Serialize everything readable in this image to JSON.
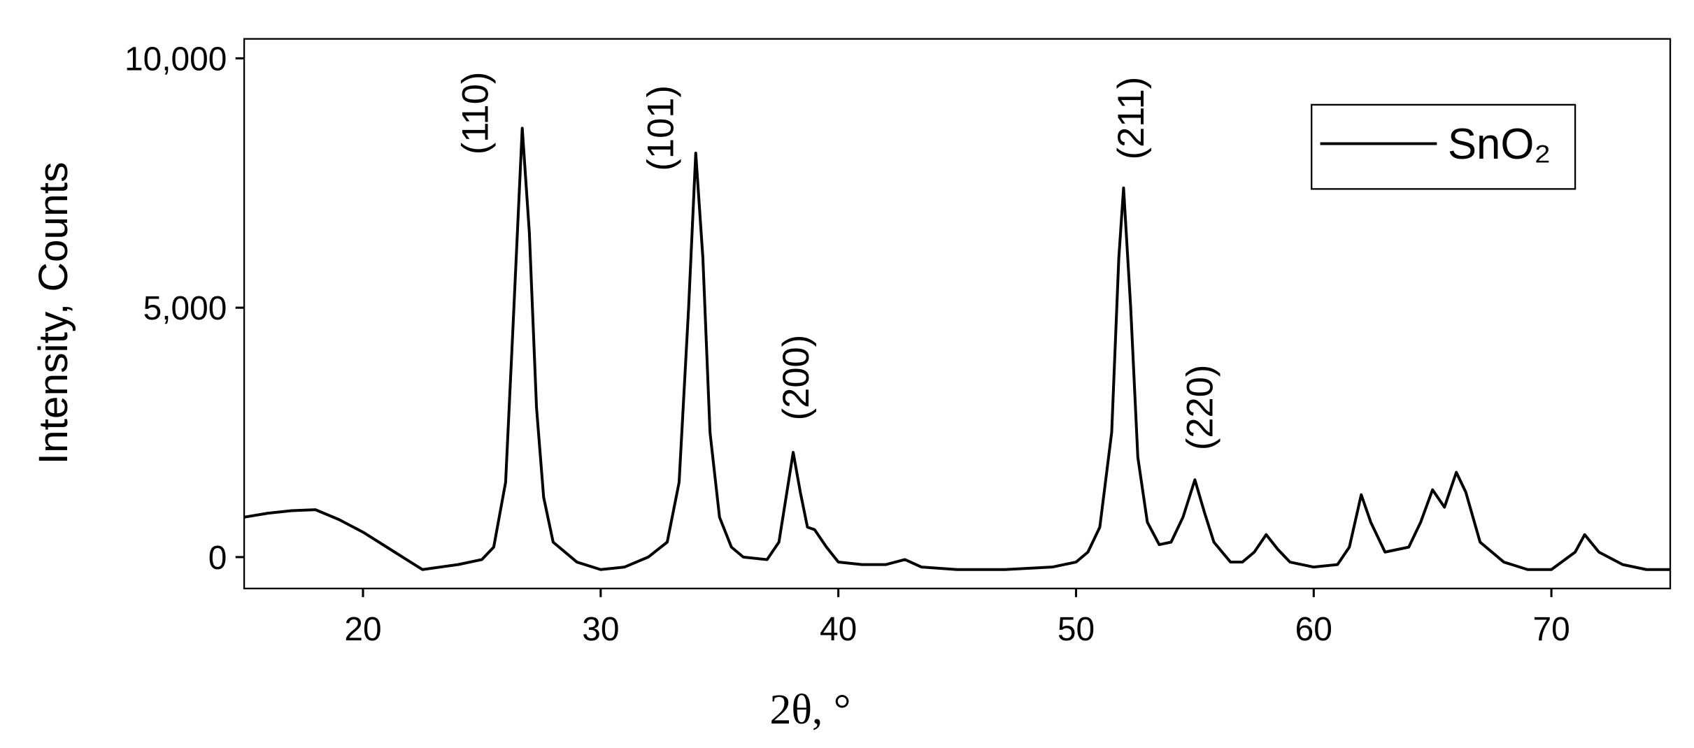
{
  "chart_data": {
    "type": "line",
    "x_label": "2θ, °",
    "y_label": "Intensity, Counts",
    "xlim": [
      15,
      75
    ],
    "ylim": [
      -630,
      10390
    ],
    "xticks": [
      20,
      30,
      40,
      50,
      60,
      70
    ],
    "yticks": [
      {
        "value": 0,
        "label": "0"
      },
      {
        "value": 5000,
        "label": "5,000"
      },
      {
        "value": 10000,
        "label": "10,000"
      }
    ],
    "legend": "top-right",
    "annotations": [
      {
        "text": "(110)",
        "x": 24.7,
        "y": 8900
      },
      {
        "text": "(101)",
        "x": 32.5,
        "y": 8600
      },
      {
        "text": "(200)",
        "x": 38.2,
        "y": 3600
      },
      {
        "text": "(211)",
        "x": 52.3,
        "y": 8800
      },
      {
        "text": "(220)",
        "x": 55.2,
        "y": 3000
      }
    ],
    "x": [
      15,
      16,
      17,
      18,
      19,
      20,
      21,
      22,
      22.5,
      24,
      25,
      25.5,
      26,
      26.3,
      26.7,
      27,
      27.3,
      27.6,
      28,
      29,
      30,
      31,
      32,
      32.8,
      33.3,
      33.7,
      34,
      34.3,
      34.6,
      35,
      35.5,
      36,
      37,
      37.5,
      37.8,
      38.1,
      38.4,
      38.7,
      39,
      39.5,
      40,
      41,
      42,
      42.8,
      43.5,
      45,
      47,
      49,
      50,
      50.5,
      51,
      51.5,
      51.8,
      52,
      52.3,
      52.6,
      53,
      53.5,
      54,
      54.5,
      55,
      55.4,
      55.8,
      56.5,
      57,
      57.5,
      58,
      58.5,
      59,
      60,
      61,
      61.5,
      62,
      62.4,
      63,
      64,
      64.5,
      65,
      65.5,
      66,
      66.4,
      67,
      68,
      69,
      70,
      71,
      71.4,
      72,
      73,
      74,
      75
    ],
    "series": [
      {
        "name": "SnO₂",
        "color": "#000000",
        "values": [
          800,
          880,
          930,
          950,
          750,
          500,
          200,
          -100,
          -250,
          -150,
          -50,
          200,
          1500,
          4500,
          8600,
          6500,
          3000,
          1200,
          300,
          -100,
          -250,
          -200,
          0,
          300,
          1500,
          5000,
          8100,
          6000,
          2500,
          800,
          200,
          0,
          -50,
          300,
          1200,
          2100,
          1300,
          600,
          550,
          200,
          -100,
          -150,
          -150,
          -50,
          -200,
          -250,
          -250,
          -200,
          -100,
          100,
          600,
          2500,
          6000,
          7400,
          5000,
          2000,
          700,
          250,
          300,
          800,
          1550,
          900,
          300,
          -100,
          -100,
          100,
          450,
          150,
          -100,
          -200,
          -150,
          200,
          1250,
          700,
          100,
          200,
          700,
          1350,
          1000,
          1700,
          1300,
          300,
          -100,
          -250,
          -250,
          100,
          450,
          100,
          -150,
          -250,
          -250
        ]
      }
    ]
  }
}
